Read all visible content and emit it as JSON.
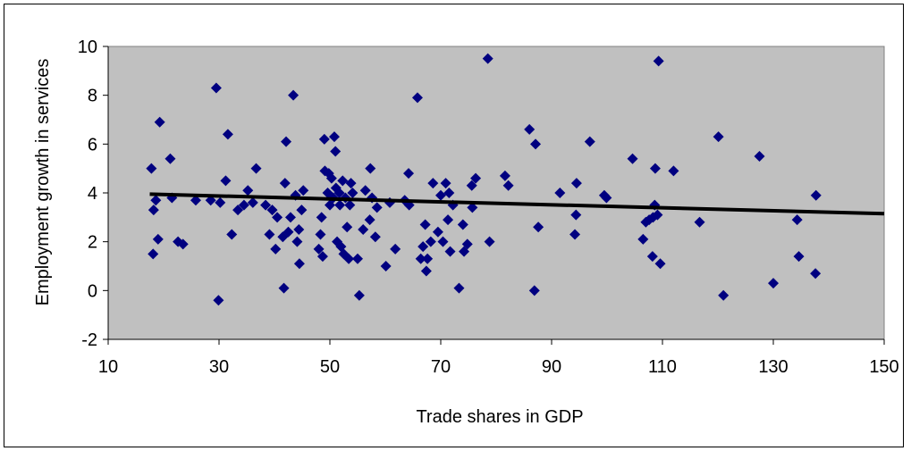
{
  "chart_data": {
    "type": "scatter",
    "xlabel": "Trade shares in GDP",
    "ylabel": "Employment growth in services",
    "xlim": [
      10,
      150
    ],
    "ylim": [
      -2,
      10
    ],
    "x_ticks": [
      10,
      30,
      50,
      70,
      90,
      110,
      130,
      150
    ],
    "y_ticks": [
      -2,
      0,
      2,
      4,
      6,
      8,
      10
    ],
    "grid": false,
    "legend": "none",
    "plot_background": "#C0C0C0",
    "marker_color": "#000080",
    "marker_shape": "diamond",
    "trendline": {
      "x": [
        17.5,
        150
      ],
      "y": [
        3.95,
        3.15
      ],
      "color": "#000000"
    },
    "points": [
      [
        17.8,
        5.0
      ],
      [
        18.1,
        1.5
      ],
      [
        18.2,
        3.3
      ],
      [
        18.6,
        3.7
      ],
      [
        19.0,
        2.1
      ],
      [
        19.3,
        6.9
      ],
      [
        21.2,
        5.4
      ],
      [
        21.5,
        3.8
      ],
      [
        22.6,
        2.0
      ],
      [
        23.5,
        1.9
      ],
      [
        25.8,
        3.7
      ],
      [
        28.5,
        3.7
      ],
      [
        29.5,
        8.3
      ],
      [
        29.9,
        -0.4
      ],
      [
        30.2,
        3.6
      ],
      [
        31.2,
        4.5
      ],
      [
        31.6,
        6.4
      ],
      [
        32.3,
        2.3
      ],
      [
        33.4,
        3.3
      ],
      [
        34.5,
        3.5
      ],
      [
        35.2,
        4.1
      ],
      [
        36.1,
        3.6
      ],
      [
        36.7,
        5.0
      ],
      [
        38.4,
        3.5
      ],
      [
        39.1,
        2.3
      ],
      [
        39.6,
        3.3
      ],
      [
        40.2,
        1.7
      ],
      [
        40.5,
        3.0
      ],
      [
        41.5,
        2.2
      ],
      [
        41.7,
        0.1
      ],
      [
        41.9,
        4.4
      ],
      [
        42.1,
        6.1
      ],
      [
        42.5,
        2.4
      ],
      [
        42.9,
        3.0
      ],
      [
        43.4,
        8.0
      ],
      [
        43.8,
        3.9
      ],
      [
        44.1,
        2.0
      ],
      [
        44.4,
        2.5
      ],
      [
        44.5,
        1.1
      ],
      [
        44.9,
        3.3
      ],
      [
        45.2,
        4.1
      ],
      [
        48.0,
        1.7
      ],
      [
        48.3,
        2.3
      ],
      [
        48.5,
        3.0
      ],
      [
        48.7,
        1.4
      ],
      [
        49.0,
        6.2
      ],
      [
        49.1,
        4.9
      ],
      [
        49.6,
        4.0
      ],
      [
        49.8,
        4.8
      ],
      [
        50.0,
        3.5
      ],
      [
        50.3,
        4.6
      ],
      [
        50.6,
        3.8
      ],
      [
        50.8,
        6.3
      ],
      [
        51.0,
        5.7
      ],
      [
        51.1,
        4.2
      ],
      [
        51.3,
        2.0
      ],
      [
        51.7,
        4.0
      ],
      [
        51.8,
        3.5
      ],
      [
        52.0,
        1.8
      ],
      [
        52.3,
        4.5
      ],
      [
        52.5,
        1.5
      ],
      [
        52.8,
        3.8
      ],
      [
        53.1,
        2.6
      ],
      [
        53.4,
        1.3
      ],
      [
        53.6,
        3.5
      ],
      [
        53.8,
        4.4
      ],
      [
        54.1,
        4.0
      ],
      [
        55.0,
        1.3
      ],
      [
        55.3,
        -0.2
      ],
      [
        56.0,
        2.5
      ],
      [
        56.4,
        4.1
      ],
      [
        57.2,
        2.9
      ],
      [
        57.3,
        5.0
      ],
      [
        57.6,
        3.8
      ],
      [
        58.2,
        2.2
      ],
      [
        58.5,
        3.4
      ],
      [
        60.1,
        1.0
      ],
      [
        60.8,
        3.6
      ],
      [
        61.8,
        1.7
      ],
      [
        63.5,
        3.7
      ],
      [
        64.2,
        4.8
      ],
      [
        64.3,
        3.5
      ],
      [
        65.8,
        7.9
      ],
      [
        66.4,
        1.3
      ],
      [
        66.8,
        1.8
      ],
      [
        67.2,
        2.7
      ],
      [
        67.4,
        0.8
      ],
      [
        67.6,
        1.3
      ],
      [
        68.2,
        2.0
      ],
      [
        68.6,
        4.4
      ],
      [
        69.5,
        2.4
      ],
      [
        70.0,
        3.9
      ],
      [
        70.4,
        2.0
      ],
      [
        70.9,
        4.4
      ],
      [
        71.3,
        2.9
      ],
      [
        71.5,
        4.0
      ],
      [
        71.7,
        1.6
      ],
      [
        72.2,
        3.5
      ],
      [
        73.3,
        0.1
      ],
      [
        74.0,
        2.7
      ],
      [
        74.2,
        1.6
      ],
      [
        74.8,
        1.9
      ],
      [
        75.6,
        4.3
      ],
      [
        75.7,
        3.4
      ],
      [
        76.3,
        4.6
      ],
      [
        78.5,
        9.5
      ],
      [
        78.8,
        2.0
      ],
      [
        81.6,
        4.7
      ],
      [
        82.2,
        4.3
      ],
      [
        86.0,
        6.6
      ],
      [
        86.9,
        0.0
      ],
      [
        87.1,
        6.0
      ],
      [
        87.6,
        2.6
      ],
      [
        91.5,
        4.0
      ],
      [
        94.2,
        2.3
      ],
      [
        94.4,
        3.1
      ],
      [
        94.5,
        4.4
      ],
      [
        96.9,
        6.1
      ],
      [
        99.5,
        3.9
      ],
      [
        99.9,
        3.8
      ],
      [
        104.6,
        5.4
      ],
      [
        106.5,
        2.1
      ],
      [
        107.0,
        2.8
      ],
      [
        107.6,
        2.9
      ],
      [
        108.2,
        1.4
      ],
      [
        108.3,
        3.0
      ],
      [
        108.6,
        3.5
      ],
      [
        108.7,
        5.0
      ],
      [
        109.1,
        3.1
      ],
      [
        109.3,
        9.4
      ],
      [
        109.6,
        1.1
      ],
      [
        112.0,
        4.9
      ],
      [
        116.7,
        2.8
      ],
      [
        120.1,
        6.3
      ],
      [
        121.0,
        -0.2
      ],
      [
        127.5,
        5.5
      ],
      [
        130.0,
        0.3
      ],
      [
        134.3,
        2.9
      ],
      [
        134.6,
        1.4
      ],
      [
        137.6,
        0.7
      ],
      [
        137.7,
        3.9
      ]
    ]
  }
}
